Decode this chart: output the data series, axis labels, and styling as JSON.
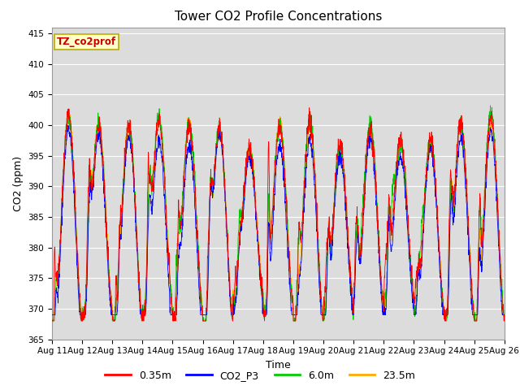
{
  "title": "Tower CO2 Profile Concentrations",
  "xlabel": "Time",
  "ylabel": "CO2 (ppm)",
  "ylim": [
    365,
    416
  ],
  "yticks": [
    365,
    370,
    375,
    380,
    385,
    390,
    395,
    400,
    405,
    410,
    415
  ],
  "x_labels": [
    "Aug 11",
    "Aug 12",
    "Aug 13",
    "Aug 14",
    "Aug 15",
    "Aug 16",
    "Aug 17",
    "Aug 18",
    "Aug 19",
    "Aug 20",
    "Aug 21",
    "Aug 22",
    "Aug 23",
    "Aug 24",
    "Aug 25",
    "Aug 26"
  ],
  "n_days": 15,
  "n_points_per_day": 144,
  "legend_labels": [
    "0.35m",
    "CO2_P3",
    "6.0m",
    "23.5m"
  ],
  "line_colors": [
    "#ff0000",
    "#0000ff",
    "#00cc00",
    "#ffaa00"
  ],
  "annotation_text": "TZ_co2prof",
  "annotation_bg": "#ffffcc",
  "annotation_border": "#bbaa00",
  "plot_bg": "#dcdcdc",
  "title_fontsize": 11,
  "label_fontsize": 9,
  "tick_fontsize": 7.5
}
